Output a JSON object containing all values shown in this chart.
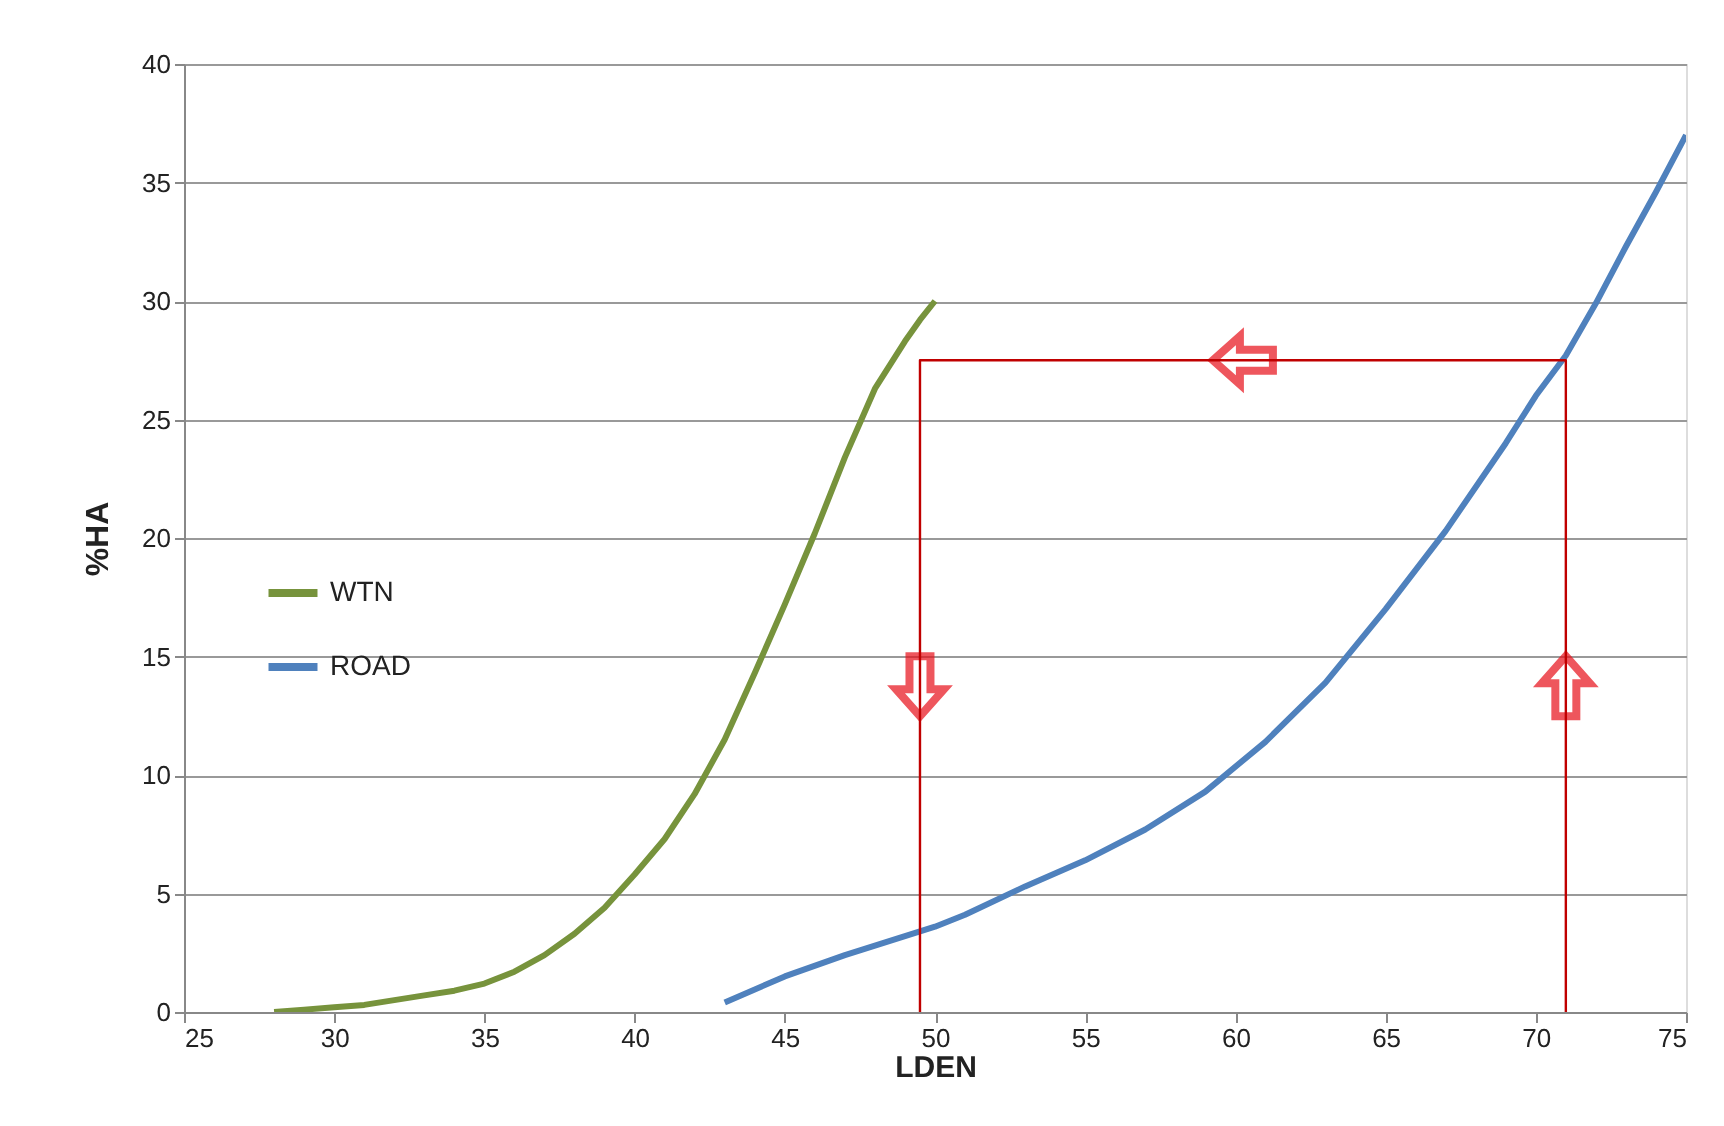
{
  "chart_data": {
    "type": "line",
    "xlabel": "LDEN",
    "ylabel": "%HA",
    "xlim": [
      25,
      75
    ],
    "xticks": [
      25,
      30,
      35,
      40,
      45,
      50,
      55,
      60,
      65,
      70,
      75
    ],
    "ylim": [
      0,
      40
    ],
    "yticks": [
      0,
      5,
      10,
      15,
      20,
      25,
      30,
      35,
      40
    ],
    "grid": "y",
    "legend": "left",
    "marker": "none",
    "line_style": "solid",
    "series": [
      {
        "name": "WTN",
        "color": "#77933c",
        "x": [
          28,
          29,
          30,
          31,
          32,
          33,
          34,
          35,
          36,
          37,
          38,
          39,
          40,
          41,
          42,
          43,
          44,
          45,
          46,
          47,
          48,
          49,
          49.5,
          50
        ],
        "values": [
          0,
          0.1,
          0.2,
          0.3,
          0.5,
          0.7,
          0.9,
          1.2,
          1.7,
          2.4,
          3.3,
          4.4,
          5.8,
          7.3,
          9.2,
          11.5,
          14.3,
          17.2,
          20.2,
          23.4,
          26.3,
          28.3,
          29.2,
          30
        ]
      },
      {
        "name": "ROAD",
        "color": "#4f81bd",
        "x": [
          43,
          45,
          47,
          49,
          50,
          51,
          53,
          55,
          57,
          59,
          61,
          63,
          65,
          67,
          69,
          70,
          71,
          72,
          73,
          74,
          75
        ],
        "values": [
          0.4,
          1.5,
          2.4,
          3.2,
          3.6,
          4.1,
          5.3,
          6.4,
          7.7,
          9.3,
          11.4,
          13.9,
          17,
          20.3,
          24,
          26,
          27.7,
          29.9,
          32.3,
          34.6,
          37
        ]
      },
      {
        "type": "line",
        "color": "#c00000",
        "x": [
          71,
          71,
          49.5,
          49.5
        ],
        "values": [
          0,
          27.5,
          27.5,
          0
        ]
      }
    ]
  }
}
